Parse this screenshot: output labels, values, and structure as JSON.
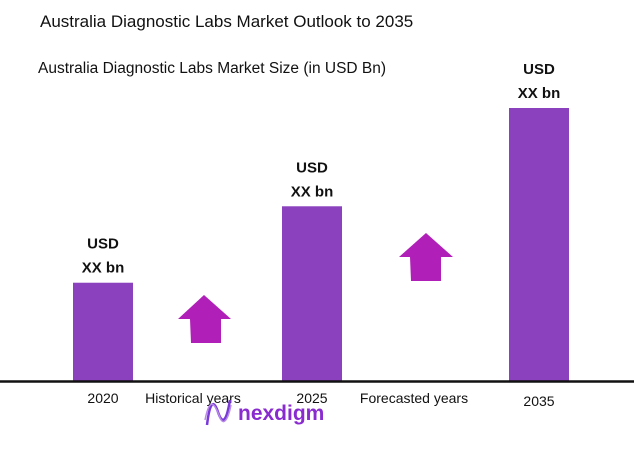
{
  "chart_data": {
    "type": "bar",
    "title": "Australia Diagnostic Labs Market Outlook to 2035",
    "subtitle": "Australia Diagnostic Labs Market Size (in USD Bn)",
    "categories": [
      "2020",
      "2025",
      "2035"
    ],
    "relative_values": [
      0.36,
      0.64,
      1.0
    ],
    "data_labels": [
      [
        "USD",
        "XX bn"
      ],
      [
        "USD",
        "XX bn"
      ],
      [
        "USD",
        "XX bn"
      ]
    ],
    "annotations": [
      "Historical years",
      "Forecasted years"
    ],
    "grid": false,
    "bar_color": "#8B41BE",
    "arrow_color": "#B020B8",
    "arrow_icon": "up-arrow-icon"
  },
  "logo": {
    "text": "nexdigm"
  }
}
